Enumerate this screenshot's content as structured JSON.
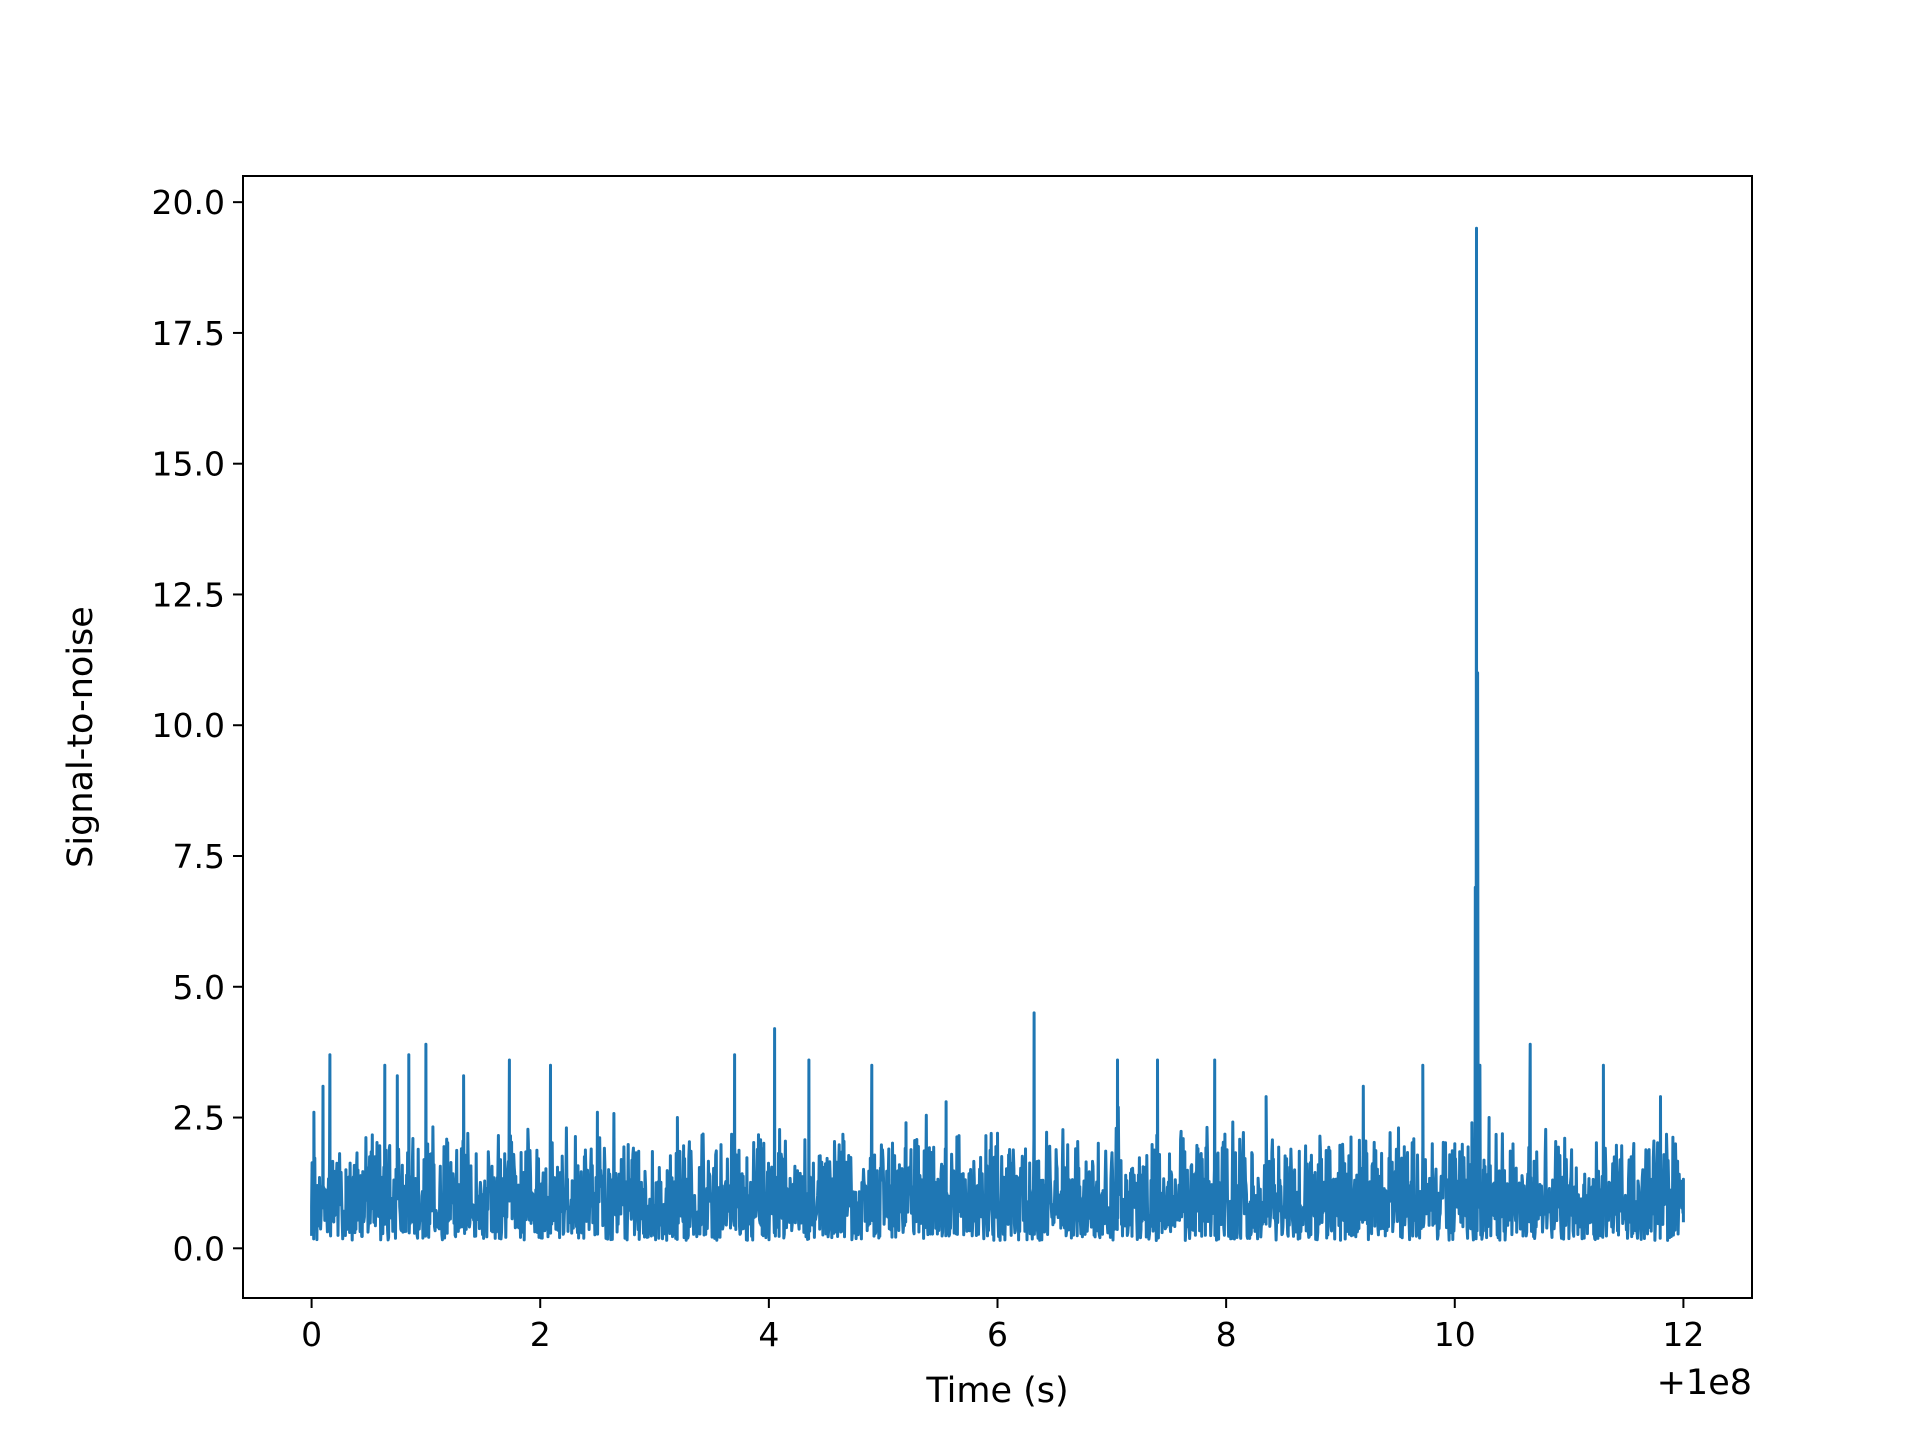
{
  "chart_data": {
    "type": "line",
    "title": "",
    "xlabel": "Time (s)",
    "ylabel": "Signal-to-noise",
    "x_offset_label": "+1e8",
    "xlim": [
      -0.6,
      12.6
    ],
    "ylim": [
      -0.95,
      20.5
    ],
    "x_ticks": [
      0,
      2,
      4,
      6,
      8,
      10,
      12
    ],
    "x_tick_labels": [
      "0",
      "2",
      "4",
      "6",
      "8",
      "10",
      "12"
    ],
    "y_ticks": [
      0.0,
      2.5,
      5.0,
      7.5,
      10.0,
      12.5,
      15.0,
      17.5,
      20.0
    ],
    "y_tick_labels": [
      "0.0",
      "2.5",
      "5.0",
      "7.5",
      "10.0",
      "12.5",
      "15.0",
      "17.5",
      "20.0"
    ],
    "grid": false,
    "series": [
      {
        "color": "#1f77b4",
        "x": [
          0.0,
          0.02,
          0.05,
          0.1,
          0.16,
          0.3,
          0.64,
          0.75,
          0.85,
          1.0,
          1.33,
          1.73,
          2.09,
          2.5,
          3.2,
          3.7,
          4.05,
          4.35,
          4.9,
          5.2,
          5.55,
          6.0,
          6.32,
          7.05,
          7.4,
          7.9,
          8.35,
          9.2,
          9.72,
          10.0,
          10.15,
          10.18,
          10.19,
          10.2,
          10.21,
          10.22,
          10.25,
          10.3,
          10.66,
          11.3,
          11.8,
          12.0
        ],
        "values": [
          0.8,
          2.6,
          1.2,
          3.1,
          3.7,
          1.5,
          3.5,
          3.3,
          3.7,
          3.9,
          3.3,
          3.6,
          3.5,
          2.6,
          2.5,
          3.7,
          4.2,
          3.6,
          3.5,
          2.4,
          2.8,
          2.2,
          4.5,
          3.6,
          3.6,
          3.6,
          2.9,
          3.1,
          3.5,
          2.0,
          2.4,
          6.9,
          19.5,
          11.0,
          2.5,
          3.5,
          1.5,
          2.5,
          3.9,
          3.5,
          2.9,
          0.5
        ]
      }
    ]
  }
}
